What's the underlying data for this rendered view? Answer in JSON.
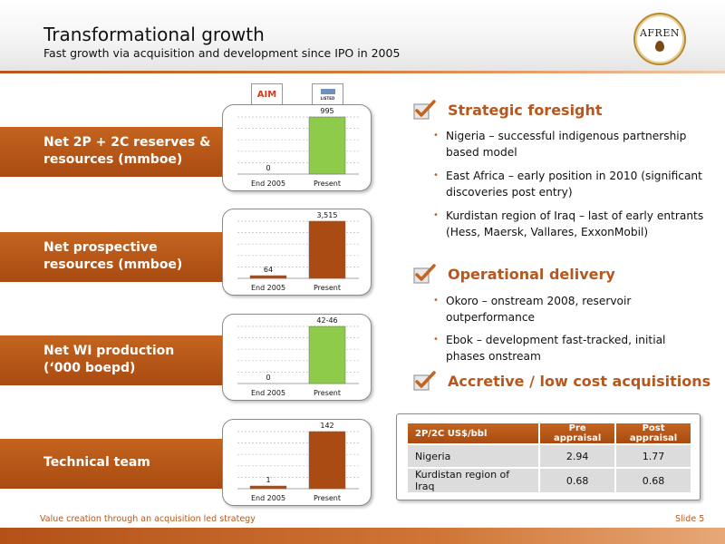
{
  "header": {
    "title": "Transformational growth",
    "subtitle": "Fast growth via acquisition and development since IPO in 2005",
    "logo_text": "AFREN"
  },
  "badges": {
    "aim": "AIM",
    "lse": "LISTED"
  },
  "metrics": [
    {
      "label_line1": "Net 2P + 2C reserves &",
      "label_line2": "resources (mmboe)"
    },
    {
      "label_line1": "Net prospective",
      "label_line2": "resources (mmboe)"
    },
    {
      "label_line1": "Net WI production",
      "label_line2": "(‘000 boepd)"
    },
    {
      "label_line1": "Technical team",
      "label_line2": ""
    }
  ],
  "chart_data": [
    {
      "type": "bar",
      "categories": [
        "End 2005",
        "Present"
      ],
      "values": [
        0,
        995
      ],
      "labels": [
        "0",
        "995"
      ],
      "colors": [
        "#a94b12",
        "#8ecb4a"
      ],
      "ylim": [
        0,
        995
      ],
      "grid": true
    },
    {
      "type": "bar",
      "categories": [
        "End 2005",
        "Present"
      ],
      "values": [
        64,
        3515
      ],
      "labels": [
        "64",
        "3,515"
      ],
      "colors": [
        "#a94b12",
        "#a94b12"
      ],
      "ylim": [
        0,
        3515
      ],
      "grid": true
    },
    {
      "type": "bar",
      "categories": [
        "End 2005",
        "Present"
      ],
      "values": [
        0,
        44
      ],
      "labels": [
        "0",
        "42-46"
      ],
      "colors": [
        "#a94b12",
        "#8ecb4a"
      ],
      "ylim": [
        0,
        44
      ],
      "grid": true
    },
    {
      "type": "bar",
      "categories": [
        "End 2005",
        "Present"
      ],
      "values": [
        1,
        142
      ],
      "labels": [
        "1",
        "142"
      ],
      "colors": [
        "#a94b12",
        "#a94b12"
      ],
      "ylim": [
        0,
        142
      ],
      "grid": true
    }
  ],
  "sections": {
    "strategic": {
      "heading": "Strategic foresight",
      "bullets": [
        "Nigeria – successful  indigenous partnership based model",
        "East Africa – early position in 2010 (significant discoveries post entry)",
        "Kurdistan region of Iraq – last of early entrants (Hess, Maersk, Vallares, ExxonMobil)"
      ]
    },
    "operational": {
      "heading": "Operational delivery",
      "bullets": [
        "Okoro – onstream 2008, reservoir outperformance",
        "Ebok – development fast-tracked, initial phases onstream"
      ]
    },
    "accretive": {
      "heading": "Accretive / low cost acquisitions"
    }
  },
  "table": {
    "headers": [
      "2P/2C US$/bbl",
      "Pre appraisal",
      "Post appraisal"
    ],
    "rows": [
      {
        "name": "Nigeria",
        "pre": "2.94",
        "post": "1.77"
      },
      {
        "name": "Kurdistan region of Iraq",
        "pre": "0.68",
        "post": "0.68"
      }
    ]
  },
  "footer": {
    "text": "Value creation through an acquisition led strategy",
    "page": "Slide 5"
  },
  "colors": {
    "accent": "#b9561b",
    "band": "#a94b12",
    "green_bar": "#8ecb4a"
  }
}
